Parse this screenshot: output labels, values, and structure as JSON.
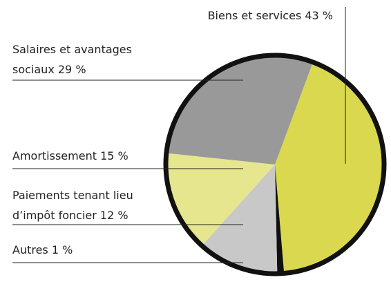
{
  "chart_data": {
    "type": "pie",
    "categories": [
      "Biens et services",
      "Autres",
      "Paiements tenant lieu d’impôt foncier",
      "Amortissement",
      "Salaires et avantages sociaux"
    ],
    "values": [
      43,
      1,
      12,
      15,
      29
    ],
    "value_labels": [
      "43 %",
      "1 %",
      "12 %",
      "15 %",
      "29 %"
    ],
    "colors": [
      "#d9d84f",
      "#111111",
      "#c8c8c8",
      "#e6e68f",
      "#999999"
    ]
  }
}
